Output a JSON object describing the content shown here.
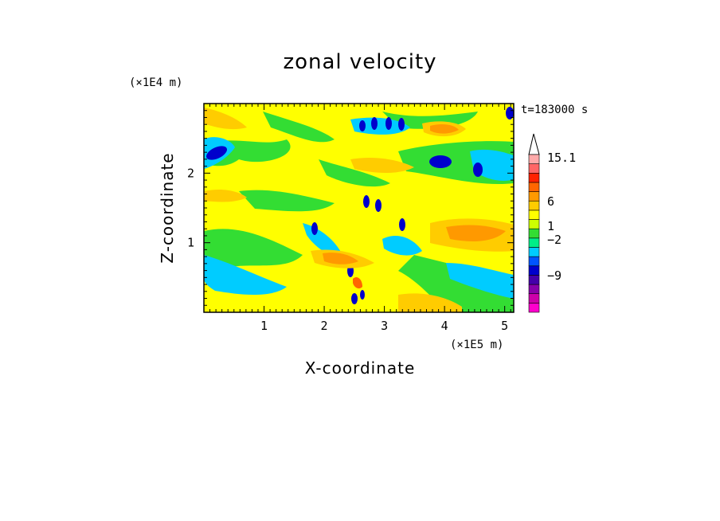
{
  "chart_data": {
    "type": "heatmap",
    "title": "zonal velocity",
    "xlabel": "X-coordinate",
    "ylabel": "Z-coordinate",
    "x_unit": "(×1E5 m)",
    "y_unit": "(×1E4 m)",
    "time_label": "t=183000 s",
    "xlim": [
      0,
      5.15
    ],
    "ylim": [
      0,
      3.0
    ],
    "x_ticks": [
      "1",
      "2",
      "3",
      "4",
      "5"
    ],
    "y_ticks": [
      "1",
      "2"
    ],
    "colorbar": {
      "levels": [
        {
          "color": "#ff00cc"
        },
        {
          "color": "#cc00aa"
        },
        {
          "color": "#8800aa"
        },
        {
          "color": "#4400aa"
        },
        {
          "color": "#0000cc"
        },
        {
          "color": "#0055ff"
        },
        {
          "color": "#00ccff"
        },
        {
          "color": "#00ee88"
        },
        {
          "color": "#33dd33"
        },
        {
          "color": "#ccff00"
        },
        {
          "color": "#ffff00"
        },
        {
          "color": "#ffcc00"
        },
        {
          "color": "#ff9900"
        },
        {
          "color": "#ff6600"
        },
        {
          "color": "#ff2200"
        },
        {
          "color": "#ff6666"
        },
        {
          "color": "#ffaaaa"
        }
      ],
      "tick_labels": [
        "15.1",
        "6",
        "1",
        "−2",
        "−9"
      ],
      "extend": "max"
    }
  }
}
